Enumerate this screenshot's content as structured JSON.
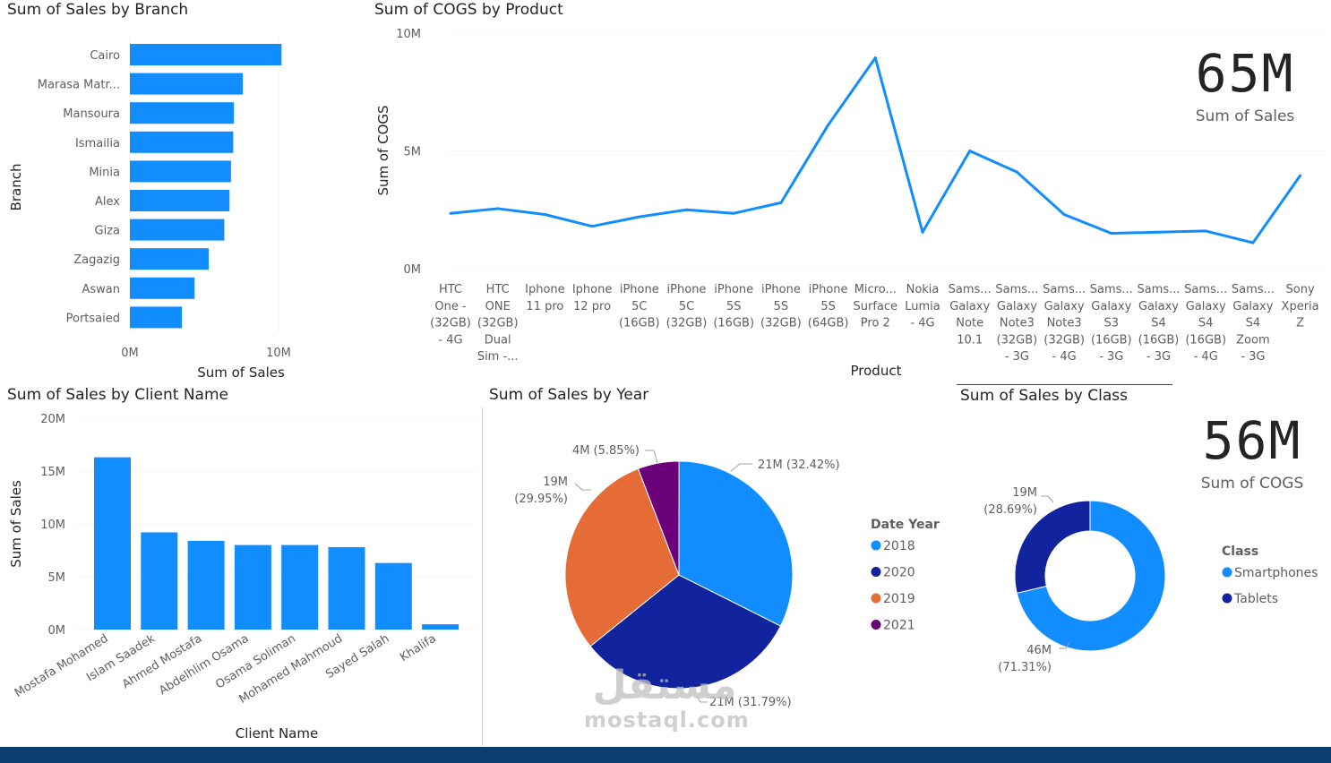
{
  "colors": {
    "bar": "#118dff",
    "axis_text": "#605e5c",
    "title_text": "#252423",
    "grid": "#e1dfdd",
    "pie_2018": "#118dff",
    "pie_2020": "#12239e",
    "pie_2019": "#e66c37",
    "pie_2021": "#6b007b",
    "donut_smart": "#118dff",
    "donut_tablets": "#12239e",
    "footer": "#0b3d6e"
  },
  "cards": {
    "sales": {
      "value": "65M",
      "label": "Sum of Sales"
    },
    "cogs": {
      "value": "56M",
      "label": "Sum of COGS"
    }
  },
  "watermark": {
    "arabic": "مستقل",
    "latin": "mostaql.com"
  },
  "chart_data": [
    {
      "id": "branch",
      "type": "bar",
      "orientation": "horizontal",
      "title": "Sum of Sales by Branch",
      "xlabel": "Sum of Sales",
      "ylabel": "Branch",
      "categories": [
        "Cairo",
        "Marasa Matr...",
        "Mansoura",
        "Ismailia",
        "Minia",
        "Alex",
        "Giza",
        "Zagazig",
        "Aswan",
        "Portsaied"
      ],
      "values": [
        10.2,
        7.6,
        7.0,
        6.95,
        6.8,
        6.7,
        6.35,
        5.3,
        4.35,
        3.5
      ],
      "unit": "M",
      "xlim": [
        0,
        10
      ],
      "ticks": [
        "0M",
        "10M"
      ]
    },
    {
      "id": "cogs_product",
      "type": "line",
      "title": "Sum of COGS by Product",
      "xlabel": "Product",
      "ylabel": "Sum of COGS",
      "categories": [
        [
          "HTC",
          "One -",
          "(32GB)",
          "- 4G"
        ],
        [
          "HTC",
          "ONE",
          "(32GB)",
          "Dual",
          "Sim -..."
        ],
        [
          "Iphone",
          "11 pro"
        ],
        [
          "Iphone",
          "12 pro"
        ],
        [
          "iPhone",
          "5C",
          "(16GB)"
        ],
        [
          "iPhone",
          "5C",
          "(32GB)"
        ],
        [
          "iPhone",
          "5S",
          "(16GB)"
        ],
        [
          "iPhone",
          "5S",
          "(32GB)"
        ],
        [
          "iPhone",
          "5S",
          "(64GB)"
        ],
        [
          "Micro...",
          "Surface",
          "Pro 2"
        ],
        [
          "Nokia",
          "Lumia",
          "- 4G"
        ],
        [
          "Sams...",
          "Galaxy",
          "Note",
          "10.1"
        ],
        [
          "Sams...",
          "Galaxy",
          "Note3",
          "(32GB)",
          "- 3G"
        ],
        [
          "Sams...",
          "Galaxy",
          "Note3",
          "(32GB)",
          "- 4G"
        ],
        [
          "Sams...",
          "Galaxy",
          "S3",
          "(16GB)",
          "- 3G"
        ],
        [
          "Sams...",
          "Galaxy",
          "S4",
          "(16GB)",
          "- 3G"
        ],
        [
          "Sams...",
          "Galaxy",
          "S4",
          "(16GB)",
          "- 4G"
        ],
        [
          "Sams...",
          "Galaxy",
          "S4",
          "Zoom",
          "- 3G"
        ],
        [
          "Sony",
          "Xperia",
          "Z"
        ]
      ],
      "values": [
        2.35,
        2.55,
        2.3,
        1.8,
        2.2,
        2.5,
        2.35,
        2.8,
        6.1,
        8.95,
        1.55,
        5.0,
        4.1,
        2.3,
        1.5,
        1.55,
        1.6,
        1.1,
        3.95
      ],
      "unit": "M",
      "ylim": [
        0,
        10
      ],
      "ticks": [
        "0M",
        "5M",
        "10M"
      ]
    },
    {
      "id": "client",
      "type": "bar",
      "title": "Sum of Sales by Client Name",
      "xlabel": "Client Name",
      "ylabel": "Sum of Sales",
      "categories": [
        "Mostafa Mohamed",
        "Islam Saadek",
        "Ahmed Mostafa",
        "Abdelhlim Osama",
        "Osama Soliman",
        "Mohamed Mahmoud",
        "Sayed Salah",
        "Khalifa"
      ],
      "values": [
        16.3,
        9.2,
        8.4,
        8.0,
        8.0,
        7.8,
        6.3,
        0.5
      ],
      "unit": "M",
      "ylim": [
        0,
        20
      ],
      "ticks": [
        "0M",
        "5M",
        "10M",
        "15M",
        "20M"
      ]
    },
    {
      "id": "year",
      "type": "pie",
      "title": "Sum of Sales by Year",
      "legend_title": "Date Year",
      "legend_position": "right",
      "slices": [
        {
          "label": "2018",
          "percent": 32.42,
          "text": "21M (32.42%)"
        },
        {
          "label": "2020",
          "percent": 31.79,
          "text": "21M (31.79%)"
        },
        {
          "label": "2019",
          "percent": 29.95,
          "text": [
            "19M",
            "(29.95%)"
          ]
        },
        {
          "label": "2021",
          "percent": 5.85,
          "text": "4M (5.85%)"
        }
      ]
    },
    {
      "id": "class",
      "type": "pie",
      "variant": "donut",
      "title": "Sum of Sales by Class",
      "legend_title": "Class",
      "legend_position": "right",
      "slices": [
        {
          "label": "Smartphones",
          "percent": 71.31,
          "text": [
            "46M",
            "(71.31%)"
          ]
        },
        {
          "label": "Tablets",
          "percent": 28.69,
          "text": [
            "19M",
            "(28.69%)"
          ]
        }
      ]
    }
  ]
}
